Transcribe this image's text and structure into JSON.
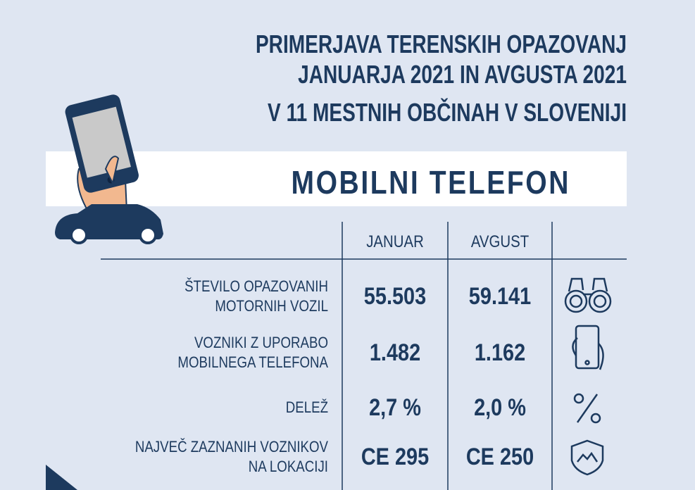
{
  "header": {
    "title_lines": [
      "PRIMERJAVA TERENSKIH OPAZOVANJ",
      "JANUARJA 2021 IN AVGUSTA 2021",
      "V 11 MESTNIH OBČINAH V SLOVENIJI"
    ],
    "subtitle": "MOBILNI TELEFON"
  },
  "table": {
    "columns": [
      "JANUAR",
      "AVGUST"
    ],
    "rows": [
      {
        "label_lines": [
          "ŠTEVILO OPAZOVANIH",
          "MOTORNIH VOZIL"
        ],
        "values": [
          "55.503",
          "59.141"
        ]
      },
      {
        "label_lines": [
          "VOZNIKI Z UPORABO",
          "MOBILNEGA TELEFONA"
        ],
        "values": [
          "1.482",
          "1.162"
        ]
      },
      {
        "label_lines": [
          "DELEŽ"
        ],
        "values": [
          "2,7 %",
          "2,0 %"
        ]
      },
      {
        "label_lines": [
          "NAJVEČ ZAZNANIH VOZNIKOV",
          "NA LOKACIJI"
        ],
        "values": [
          "CE 295",
          "CE 250"
        ]
      }
    ]
  }
}
